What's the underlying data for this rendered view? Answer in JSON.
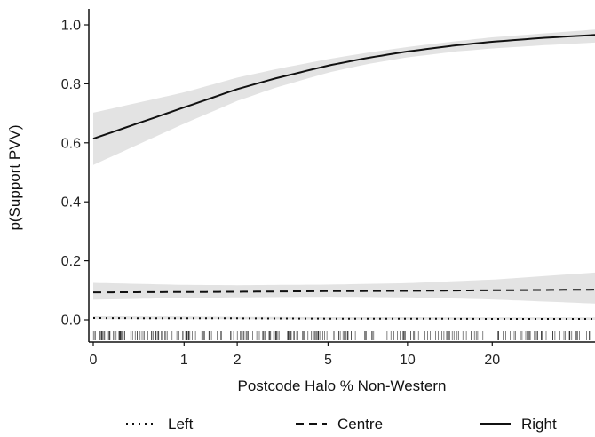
{
  "chart_data": {
    "type": "line",
    "title": "",
    "xlabel": "Postcode Halo % Non-Western",
    "ylabel": "p(Support PVV)",
    "x_scale": "log1p",
    "xlim": [
      0,
      45
    ],
    "ylim": [
      0,
      1
    ],
    "x_ticks": [
      {
        "value": 0,
        "label": "0"
      },
      {
        "value": 1,
        "label": "1"
      },
      {
        "value": 2,
        "label": "2"
      },
      {
        "value": 5,
        "label": "5"
      },
      {
        "value": 10,
        "label": "10"
      },
      {
        "value": 20,
        "label": "20"
      }
    ],
    "y_ticks": [
      {
        "value": 0.0,
        "label": "0.0"
      },
      {
        "value": 0.2,
        "label": "0.2"
      },
      {
        "value": 0.4,
        "label": "0.4"
      },
      {
        "value": 0.6,
        "label": "0.6"
      },
      {
        "value": 0.8,
        "label": "0.8"
      },
      {
        "value": 1.0,
        "label": "1.0"
      }
    ],
    "grid": false,
    "legend_position": "bottom",
    "band_color": "#e3e3e3",
    "line_color": "#111111",
    "series": [
      {
        "name": "Left",
        "line_style": "dotted",
        "x": [
          0,
          1,
          2,
          5,
          10,
          20,
          45
        ],
        "y": [
          0.006,
          0.005,
          0.005,
          0.004,
          0.004,
          0.003,
          0.003
        ],
        "lower": [
          0.002,
          0.002,
          0.002,
          0.001,
          0.001,
          0.001,
          0.0
        ],
        "upper": [
          0.012,
          0.011,
          0.01,
          0.009,
          0.009,
          0.008,
          0.008
        ]
      },
      {
        "name": "Centre",
        "line_style": "dashed",
        "x": [
          0,
          1,
          2,
          5,
          10,
          20,
          45
        ],
        "y": [
          0.093,
          0.094,
          0.095,
          0.097,
          0.098,
          0.1,
          0.102
        ],
        "lower": [
          0.068,
          0.074,
          0.076,
          0.078,
          0.076,
          0.069,
          0.055
        ],
        "upper": [
          0.125,
          0.118,
          0.117,
          0.119,
          0.124,
          0.136,
          0.16
        ]
      },
      {
        "name": "Right",
        "line_style": "solid",
        "x": [
          0,
          1,
          2,
          3,
          5,
          7,
          10,
          15,
          20,
          30,
          45
        ],
        "y": [
          0.614,
          0.72,
          0.782,
          0.818,
          0.862,
          0.887,
          0.91,
          0.931,
          0.943,
          0.956,
          0.966
        ],
        "lower": [
          0.525,
          0.665,
          0.742,
          0.786,
          0.838,
          0.866,
          0.89,
          0.91,
          0.92,
          0.931,
          0.94
        ],
        "upper": [
          0.702,
          0.771,
          0.821,
          0.849,
          0.884,
          0.905,
          0.925,
          0.945,
          0.958,
          0.971,
          0.984
        ]
      }
    ]
  }
}
